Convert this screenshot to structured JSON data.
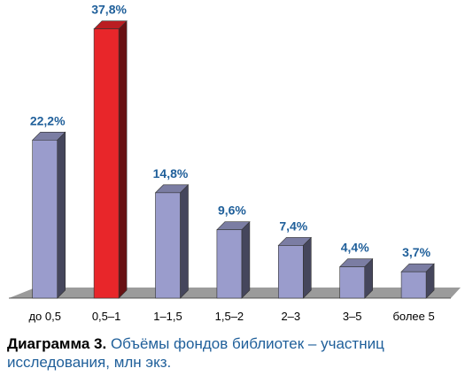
{
  "caption": {
    "label": "Диаграмма 3.",
    "text": " Объёмы фондов библиотек – участниц исследования, млн экз."
  },
  "colors": {
    "bar_default": "#9a9ccc",
    "bar_highlight": "#e8262a",
    "data_label": "#1f5f9a",
    "floor": "#9b9b9b"
  },
  "chart_data": {
    "type": "bar",
    "categories": [
      "до 0,5",
      "0,5–1",
      "1–1,5",
      "1,5–2",
      "2–3",
      "3–5",
      "более 5"
    ],
    "values": [
      22.2,
      37.8,
      14.8,
      9.6,
      7.4,
      4.4,
      3.7
    ],
    "data_labels": [
      "22,2%",
      "37,8%",
      "14,8%",
      "9,6%",
      "7,4%",
      "4,4%",
      "3,7%"
    ],
    "highlight_index": 1,
    "unit": "%",
    "style": "3d",
    "grid": false,
    "legend": "none",
    "ylim": [
      0,
      40
    ]
  }
}
